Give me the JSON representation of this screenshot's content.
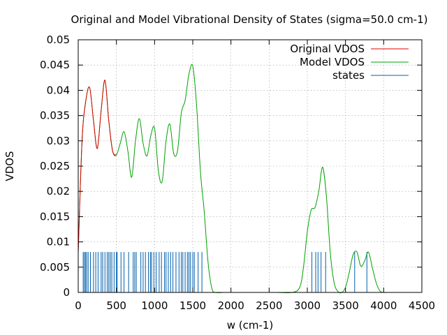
{
  "chart_data": {
    "type": "line",
    "title": "Original and Model Vibrational Density of States (sigma=50.0 cm-1)",
    "xlabel": "w (cm-1)",
    "ylabel": "VDOS",
    "xlim": [
      0,
      4500
    ],
    "ylim": [
      0,
      0.05
    ],
    "xticks": [
      0,
      500,
      1000,
      1500,
      2000,
      2500,
      3000,
      3500,
      4000,
      4500
    ],
    "yticks": [
      0,
      0.005,
      0.01,
      0.015,
      0.02,
      0.025,
      0.03,
      0.035,
      0.04,
      0.045,
      0.05
    ],
    "xtick_labels": [
      "0",
      "500",
      "1000",
      "1500",
      "2000",
      "2500",
      "3000",
      "3500",
      "4000",
      "4500"
    ],
    "ytick_labels": [
      "0",
      "0.005",
      "0.01",
      "0.015",
      "0.02",
      "0.025",
      "0.03",
      "0.035",
      "0.04",
      "0.045",
      "0.05"
    ],
    "grid": true,
    "legend_position": "top-right",
    "series": [
      {
        "name": "Original VDOS",
        "color": "#e00000",
        "x": [
          0,
          50,
          100,
          150,
          200,
          250,
          300,
          350,
          400,
          450,
          500
        ],
        "y": [
          0.008,
          0.03,
          0.038,
          0.0405,
          0.034,
          0.0285,
          0.036,
          0.042,
          0.034,
          0.028,
          0.0272
        ]
      },
      {
        "name": "Model VDOS",
        "color": "#00a000",
        "x": [
          0,
          50,
          100,
          150,
          200,
          250,
          300,
          350,
          400,
          450,
          500,
          550,
          600,
          650,
          700,
          750,
          800,
          850,
          900,
          950,
          1000,
          1050,
          1100,
          1150,
          1200,
          1250,
          1300,
          1350,
          1400,
          1450,
          1500,
          1550,
          1600,
          1650,
          1700,
          1750,
          1800,
          1900,
          2000,
          2200,
          2400,
          2600,
          2800,
          2900,
          2950,
          3000,
          3050,
          3100,
          3150,
          3200,
          3250,
          3300,
          3350,
          3400,
          3450,
          3500,
          3550,
          3600,
          3650,
          3700,
          3750,
          3800,
          3850,
          3900,
          3950,
          4000,
          4050,
          4100
        ],
        "y": [
          0.008,
          0.03,
          0.038,
          0.0405,
          0.034,
          0.0285,
          0.036,
          0.042,
          0.034,
          0.028,
          0.0272,
          0.0295,
          0.0318,
          0.028,
          0.0228,
          0.03,
          0.0344,
          0.0295,
          0.027,
          0.031,
          0.0325,
          0.024,
          0.022,
          0.03,
          0.0333,
          0.0275,
          0.028,
          0.0355,
          0.038,
          0.0432,
          0.0448,
          0.037,
          0.024,
          0.016,
          0.006,
          0.0008,
          0.0,
          0.0,
          0.0,
          0.0,
          0.0,
          0.0,
          0.0,
          0.001,
          0.005,
          0.012,
          0.0163,
          0.0168,
          0.02,
          0.0248,
          0.019,
          0.008,
          0.002,
          0.0002,
          0.0,
          0.001,
          0.004,
          0.0075,
          0.008,
          0.0052,
          0.0062,
          0.008,
          0.005,
          0.002,
          0.0003,
          0.0,
          0.0,
          0.0
        ]
      },
      {
        "name": "states",
        "color": "#0060ad",
        "style": "impulses",
        "height": 0.008,
        "x": [
          65,
          80,
          95,
          110,
          130,
          160,
          200,
          230,
          260,
          300,
          320,
          350,
          380,
          400,
          420,
          440,
          470,
          500,
          510,
          560,
          600,
          660,
          720,
          740,
          760,
          820,
          850,
          880,
          920,
          945,
          960,
          990,
          1020,
          1060,
          1090,
          1130,
          1150,
          1180,
          1210,
          1240,
          1280,
          1320,
          1350,
          1370,
          1400,
          1430,
          1450,
          1470,
          1500,
          1520,
          1570,
          1620,
          3060,
          3110,
          3140,
          3180,
          3240,
          3620,
          3780
        ]
      }
    ]
  }
}
